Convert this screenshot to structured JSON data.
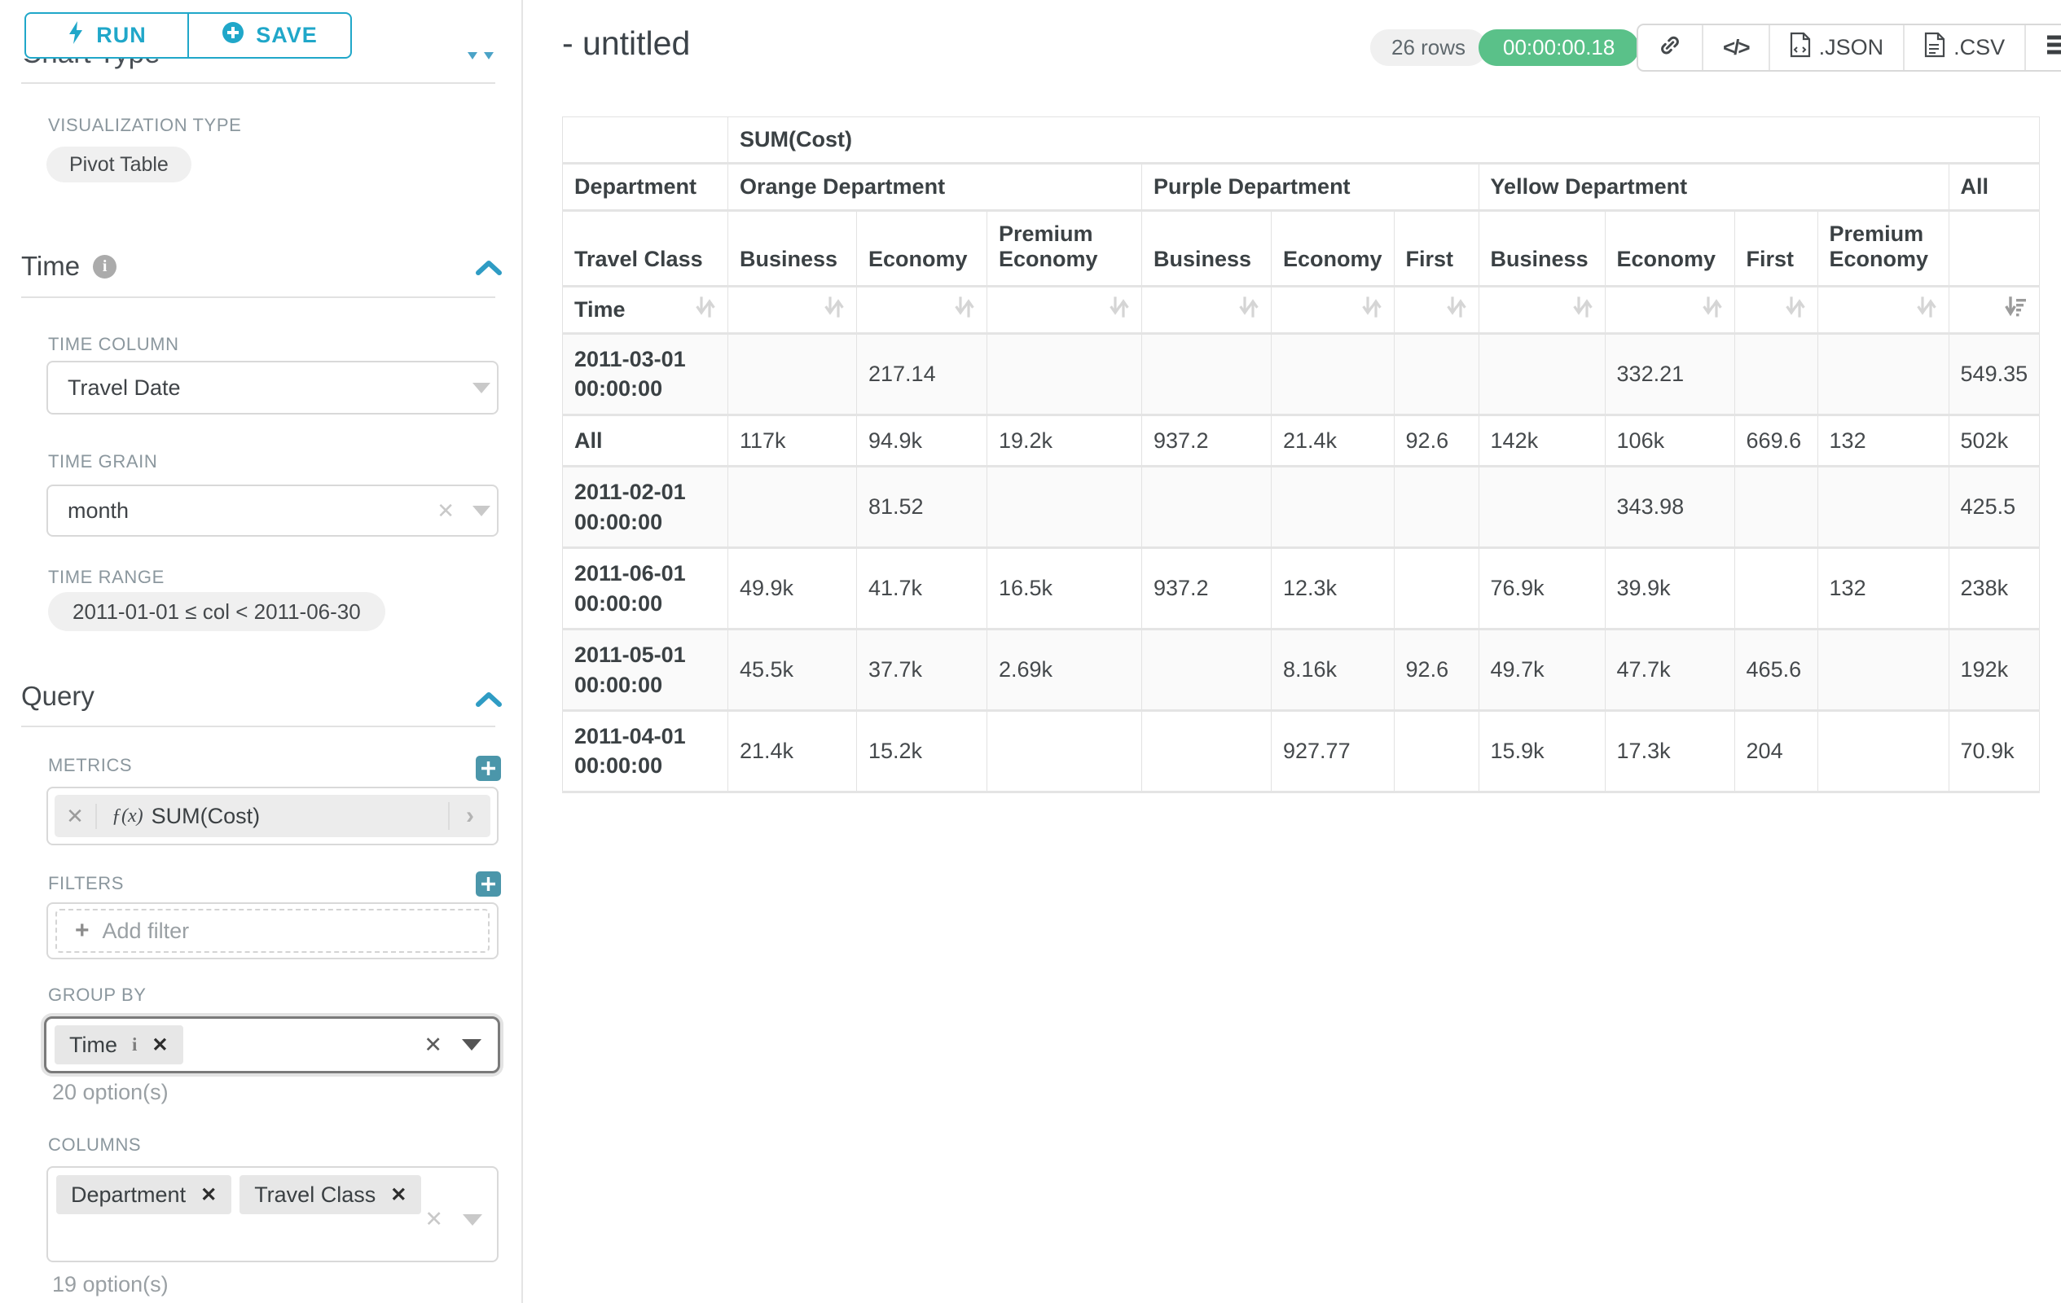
{
  "sidebar": {
    "run_label": "RUN",
    "save_label": "SAVE",
    "chart_type_heading": "Chart Type",
    "visualization_type_label": "VISUALIZATION TYPE",
    "visualization_type_value": "Pivot Table",
    "time_section": {
      "heading": "Time",
      "time_column_label": "TIME COLUMN",
      "time_column_value": "Travel Date",
      "time_grain_label": "TIME GRAIN",
      "time_grain_value": "month",
      "time_range_label": "TIME RANGE",
      "time_range_value": "2011-01-01 ≤ col < 2011-06-30"
    },
    "query_section": {
      "heading": "Query",
      "metrics_label": "METRICS",
      "metric_fx": "ƒ(x)",
      "metric_value": "SUM(Cost)",
      "filters_label": "FILTERS",
      "add_filter_label": "Add filter",
      "group_by_label": "GROUP BY",
      "group_by_tags": [
        "Time"
      ],
      "group_by_options_hint": "20 option(s)",
      "columns_label": "COLUMNS",
      "columns_tags": [
        "Department",
        "Travel Class"
      ],
      "columns_options_hint": "19 option(s)"
    }
  },
  "header": {
    "title": "- untitled",
    "rows_badge": "26 rows",
    "timer_badge": "00:00:00.18",
    "json_label": ".JSON",
    "csv_label": ".CSV"
  },
  "pivot": {
    "metric_header": "SUM(Cost)",
    "department_label": "Department",
    "travel_class_label": "Travel Class",
    "time_label": "Time",
    "groups": [
      {
        "label": "Orange Department",
        "span": 3
      },
      {
        "label": "Purple Department",
        "span": 3
      },
      {
        "label": "Yellow Department",
        "span": 4
      },
      {
        "label": "All",
        "span": 1
      }
    ],
    "class_headers": [
      "Business",
      "Economy",
      "Premium Economy",
      "Business",
      "Economy",
      "First",
      "Business",
      "Economy",
      "First",
      "Premium Economy",
      ""
    ],
    "rows": [
      {
        "label": "2011-03-01 00:00:00",
        "values": [
          "",
          "217.14",
          "",
          "",
          "",
          "",
          "",
          "332.21",
          "",
          "",
          "549.35"
        ]
      },
      {
        "label": "All",
        "values": [
          "117k",
          "94.9k",
          "19.2k",
          "937.2",
          "21.4k",
          "92.6",
          "142k",
          "106k",
          "669.6",
          "132",
          "502k"
        ]
      },
      {
        "label": "2011-02-01 00:00:00",
        "values": [
          "",
          "81.52",
          "",
          "",
          "",
          "",
          "",
          "343.98",
          "",
          "",
          "425.5"
        ]
      },
      {
        "label": "2011-06-01 00:00:00",
        "values": [
          "49.9k",
          "41.7k",
          "16.5k",
          "937.2",
          "12.3k",
          "",
          "76.9k",
          "39.9k",
          "",
          "132",
          "238k"
        ]
      },
      {
        "label": "2011-05-01 00:00:00",
        "values": [
          "45.5k",
          "37.7k",
          "2.69k",
          "",
          "8.16k",
          "92.6",
          "49.7k",
          "47.7k",
          "465.6",
          "",
          "192k"
        ]
      },
      {
        "label": "2011-04-01 00:00:00",
        "values": [
          "21.4k",
          "15.2k",
          "",
          "",
          "927.77",
          "",
          "15.9k",
          "17.3k",
          "204",
          "",
          "70.9k"
        ]
      }
    ]
  },
  "chart_data": {
    "type": "table",
    "title": "SUM(Cost)",
    "row_dimension": "Time",
    "column_dimensions": [
      "Department",
      "Travel Class"
    ],
    "columns": [
      "Orange Department / Business",
      "Orange Department / Economy",
      "Orange Department / Premium Economy",
      "Purple Department / Business",
      "Purple Department / Economy",
      "Purple Department / First",
      "Yellow Department / Business",
      "Yellow Department / Economy",
      "Yellow Department / First",
      "Yellow Department / Premium Economy",
      "All"
    ],
    "rows": [
      {
        "time": "2011-03-01 00:00:00",
        "values": [
          null,
          217.14,
          null,
          null,
          null,
          null,
          null,
          332.21,
          null,
          null,
          549.35
        ]
      },
      {
        "time": "All",
        "values": [
          117000,
          94900,
          19200,
          937.2,
          21400,
          92.6,
          142000,
          106000,
          669.6,
          132,
          502000
        ]
      },
      {
        "time": "2011-02-01 00:00:00",
        "values": [
          null,
          81.52,
          null,
          null,
          null,
          null,
          null,
          343.98,
          null,
          null,
          425.5
        ]
      },
      {
        "time": "2011-06-01 00:00:00",
        "values": [
          49900,
          41700,
          16500,
          937.2,
          12300,
          null,
          76900,
          39900,
          null,
          132,
          238000
        ]
      },
      {
        "time": "2011-05-01 00:00:00",
        "values": [
          45500,
          37700,
          2690,
          null,
          8160,
          92.6,
          49700,
          47700,
          465.6,
          null,
          192000
        ]
      },
      {
        "time": "2011-04-01 00:00:00",
        "values": [
          21400,
          15200,
          null,
          null,
          927.77,
          null,
          15900,
          17300,
          204,
          null,
          70900
        ]
      }
    ],
    "sort": {
      "column": "All",
      "direction": "desc"
    }
  },
  "colors": {
    "accent": "#20a7c9",
    "success_badge": "#5ac189",
    "plus_button": "#4b96aa"
  }
}
